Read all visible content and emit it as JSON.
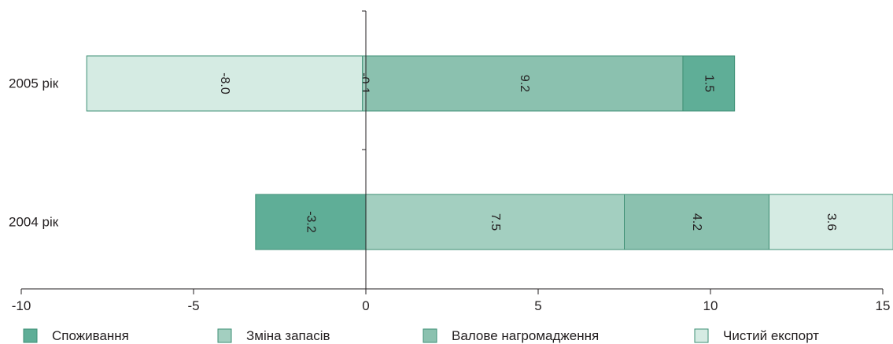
{
  "chart_data": {
    "type": "bar",
    "orientation": "horizontal",
    "stacked": true,
    "title": "",
    "xlabel": "",
    "ylabel": "",
    "xlim": [
      -10,
      15
    ],
    "x_ticks": [
      "-10",
      "-5",
      "0",
      "5",
      "10",
      "15"
    ],
    "grid": false,
    "legend_position": "bottom",
    "categories": [
      "2005 рік",
      "2004 рік"
    ],
    "series": [
      {
        "name": "Споживання",
        "color": "#5fae97",
        "values": [
          1.5,
          -3.2
        ],
        "labels": [
          "1.5",
          "-3.2"
        ]
      },
      {
        "name": "Зміна запасів",
        "color": "#a3cfc0",
        "values": [
          -0.1,
          7.5
        ],
        "labels": [
          "-0.1",
          "7.5"
        ]
      },
      {
        "name": "Валове нагромадження",
        "color": "#8bc1af",
        "values": [
          9.2,
          4.2
        ],
        "labels": [
          "9.2",
          "4.2"
        ]
      },
      {
        "name": "Чистий експорт",
        "color": "#d5ebe3",
        "values": [
          -8.0,
          3.6
        ],
        "labels": [
          "-8.0",
          "3.6"
        ]
      }
    ],
    "stack_order": [
      [
        "Валове нагромадження",
        "Споживання",
        "Зміна запасів",
        "Чистий експорт"
      ],
      [
        "Зміна запасів",
        "Валове нагромадження",
        "Чистий експорт",
        "Споживання"
      ]
    ]
  }
}
